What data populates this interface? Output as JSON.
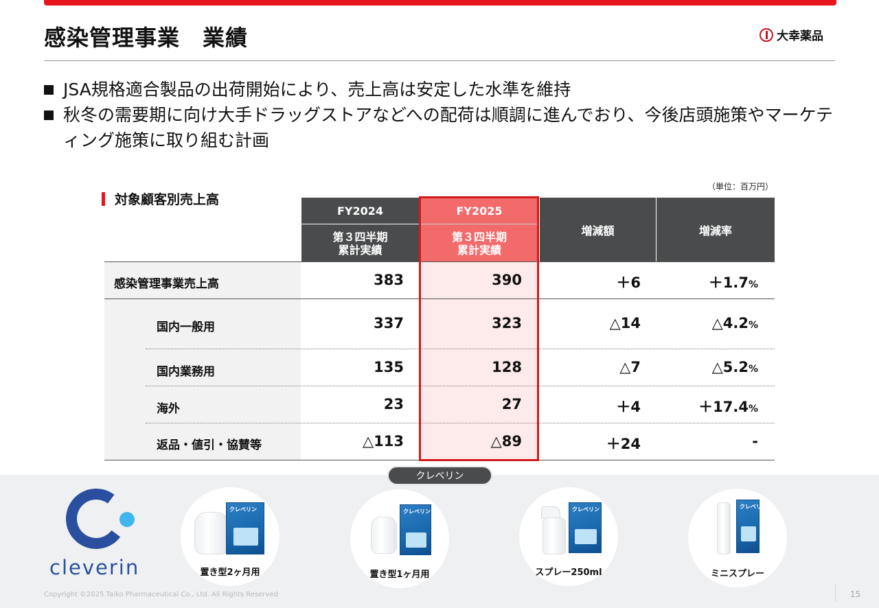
{
  "title": "感染管理事業　業績",
  "company": "大幸薬品",
  "bullets": [
    "JSA規格適合製品の出荷開始により、売上高は安定した水準を維持",
    "秋冬の需要期に向け大手ドラッグストアなどへの配荷は順調に進んでおり、今後店頭施策やマーケティング施策に取り組む計画"
  ],
  "section_label": "対象顧客別売上高",
  "unit": "（単位：百万円）",
  "table": {
    "headers": {
      "fy2024": "FY2024",
      "fy2025": "FY2025",
      "period_line1": "第３四半期",
      "period_line2": "累計実績",
      "diff": "増減額",
      "rate": "増減率"
    },
    "rows": [
      {
        "label": "感染管理事業売上高",
        "fy2024": "383",
        "fy2025": "390",
        "diff": "＋6",
        "rate": "＋1.7",
        "rate_unit": "%"
      },
      {
        "label": "国内一般用",
        "fy2024": "337",
        "fy2025": "323",
        "diff": "△14",
        "rate": "△4.2",
        "rate_unit": "%"
      },
      {
        "label": "国内業務用",
        "fy2024": "135",
        "fy2025": "128",
        "diff": "△7",
        "rate": "△5.2",
        "rate_unit": "%"
      },
      {
        "label": "海外",
        "fy2024": "23",
        "fy2025": "27",
        "diff": "＋4",
        "rate": "＋17.4",
        "rate_unit": "%"
      },
      {
        "label": "返品・値引・協賛等",
        "fy2024": "△113",
        "fy2025": "△89",
        "diff": "＋24",
        "rate": "-",
        "rate_unit": ""
      }
    ]
  },
  "product_brand_pill": "クレベリン",
  "brand_word": "cleverin",
  "box_label": "クレベリン",
  "products": [
    "置き型2ヶ月用",
    "置き型1ヶ月用",
    "スプレー250ml",
    "ミニスプレー"
  ],
  "copyright": "Copyright ©2025  Taiko Pharmaceutical Co., Ltd. All Rights Reserved",
  "page_number": "15",
  "colors": {
    "accent_red": "#e8141e",
    "header_dark": "#4a4b4d",
    "header_red": "#f26a6a",
    "brand_blue": "#2a4f9e",
    "brand_cyan": "#3fb7ee"
  }
}
